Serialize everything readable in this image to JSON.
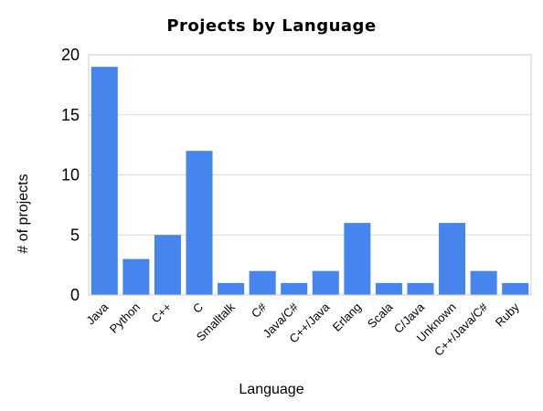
{
  "chart_data": {
    "type": "bar",
    "title": "Projects by Language",
    "xlabel": "Language",
    "ylabel": "# of projects",
    "categories": [
      "Java",
      "Python",
      "C++",
      "C",
      "Smalltalk",
      "C#",
      "Java/C#",
      "C++/Java",
      "Erlang",
      "Scala",
      "C/Java",
      "Unknown",
      "C++/Java/C#",
      "Ruby"
    ],
    "values": [
      19,
      3,
      5,
      12,
      1,
      2,
      1,
      2,
      6,
      1,
      1,
      6,
      2,
      1
    ],
    "ylim": [
      0,
      20
    ],
    "yticks": [
      0,
      5,
      10,
      15,
      20
    ],
    "grid": true,
    "legend": "none",
    "colors": {
      "bar": "#4684ee",
      "grid": "#d9d9d9",
      "border": "#cccccc"
    }
  }
}
